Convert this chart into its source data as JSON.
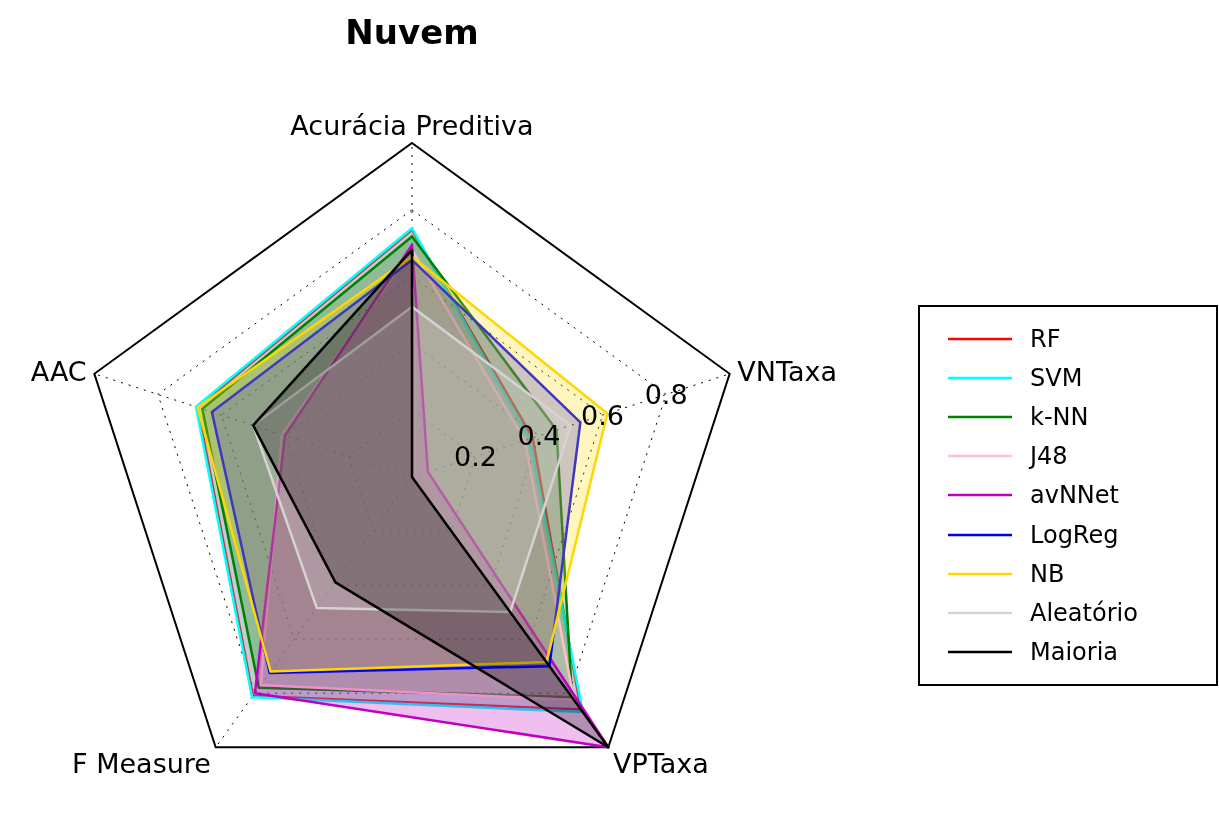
{
  "chart_data": {
    "type": "radar",
    "title": "Nuvem",
    "categories": [
      "Acurácia Preditiva",
      "VNTaxa",
      "VPTaxa",
      "F Measure",
      "AAC"
    ],
    "ylim": [
      0,
      1
    ],
    "yticks": [
      0.2,
      0.4,
      0.6,
      0.8
    ],
    "grid": true,
    "legend": "right",
    "series": [
      {
        "name": "RF",
        "color": "#ff0000",
        "values": [
          0.74,
          0.38,
          0.86,
          0.81,
          0.675
        ]
      },
      {
        "name": "SVM",
        "color": "#00ffff",
        "values": [
          0.745,
          0.37,
          0.87,
          0.815,
          0.68
        ]
      },
      {
        "name": "k-NN",
        "color": "#008000",
        "values": [
          0.72,
          0.455,
          0.815,
          0.78,
          0.66
        ]
      },
      {
        "name": "J48",
        "color": "#ffc0cb",
        "values": [
          0.68,
          0.355,
          0.825,
          0.77,
          0.41
        ]
      },
      {
        "name": "avNNet",
        "color": "#c000c0",
        "values": [
          0.695,
          0.05,
          1.0,
          0.8,
          0.4
        ]
      },
      {
        "name": "LogReg",
        "color": "#0000ff",
        "values": [
          0.65,
          0.53,
          0.7,
          0.725,
          0.63
        ]
      },
      {
        "name": "NB",
        "color": "#ffd700",
        "values": [
          0.66,
          0.615,
          0.685,
          0.72,
          0.675
        ]
      },
      {
        "name": "Aleatório",
        "color": "#d3d3d3",
        "values": [
          0.51,
          0.5,
          0.5,
          0.485,
          0.5
        ]
      },
      {
        "name": "Maioria",
        "color": "#000000",
        "values": [
          0.68,
          0.0,
          1.0,
          0.39,
          0.5
        ]
      }
    ]
  }
}
